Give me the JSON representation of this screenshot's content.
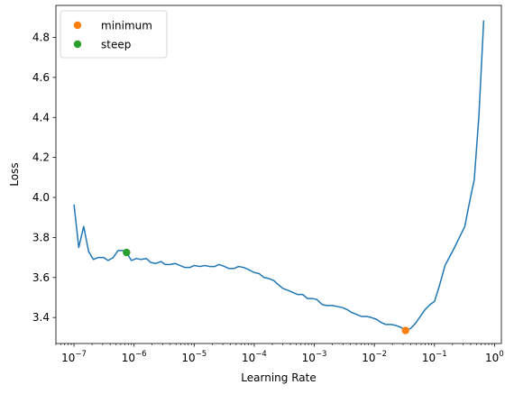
{
  "chart_data": {
    "type": "line",
    "xlabel": "Learning Rate",
    "ylabel": "Loss",
    "xscale": "log",
    "xlim": [
      5e-08,
      1.3
    ],
    "ylim": [
      3.27,
      4.96
    ],
    "grid": false,
    "legend_placement": "top-left",
    "x_ticks": [
      {
        "value": 1e-07,
        "label": "10",
        "exp": "−7"
      },
      {
        "value": 1e-06,
        "label": "10",
        "exp": "−6"
      },
      {
        "value": 1e-05,
        "label": "10",
        "exp": "−5"
      },
      {
        "value": 0.0001,
        "label": "10",
        "exp": "−4"
      },
      {
        "value": 0.001,
        "label": "10",
        "exp": "−3"
      },
      {
        "value": 0.01,
        "label": "10",
        "exp": "−2"
      },
      {
        "value": 0.1,
        "label": "10",
        "exp": "−1"
      },
      {
        "value": 1,
        "label": "10",
        "exp": "0"
      }
    ],
    "y_ticks": [
      {
        "value": 3.4,
        "label": "3.4"
      },
      {
        "value": 3.6,
        "label": "3.6"
      },
      {
        "value": 3.8,
        "label": "3.8"
      },
      {
        "value": 4.0,
        "label": "4.0"
      },
      {
        "value": 4.2,
        "label": "4.2"
      },
      {
        "value": 4.4,
        "label": "4.4"
      },
      {
        "value": 4.6,
        "label": "4.6"
      },
      {
        "value": 4.8,
        "label": "4.8"
      }
    ],
    "series": [
      {
        "color": "#1f77b4",
        "points": [
          [
            1e-07,
            3.965
          ],
          [
            1.2e-07,
            3.75
          ],
          [
            1.45e-07,
            3.855
          ],
          [
            1.75e-07,
            3.73
          ],
          [
            2.1e-07,
            3.69
          ],
          [
            2.55e-07,
            3.7
          ],
          [
            3.1e-07,
            3.7
          ],
          [
            3.7e-07,
            3.685
          ],
          [
            4.5e-07,
            3.7
          ],
          [
            5.4e-07,
            3.735
          ],
          [
            6.5e-07,
            3.735
          ],
          [
            7.5e-07,
            3.725
          ],
          [
            9e-07,
            3.685
          ],
          [
            1.1e-06,
            3.695
          ],
          [
            1.3e-06,
            3.69
          ],
          [
            1.6e-06,
            3.695
          ],
          [
            1.9e-06,
            3.675
          ],
          [
            2.3e-06,
            3.67
          ],
          [
            2.8e-06,
            3.68
          ],
          [
            3.3e-06,
            3.665
          ],
          [
            4e-06,
            3.665
          ],
          [
            4.8e-06,
            3.67
          ],
          [
            5.8e-06,
            3.66
          ],
          [
            7e-06,
            3.65
          ],
          [
            8.5e-06,
            3.65
          ],
          [
            1e-05,
            3.66
          ],
          [
            1.25e-05,
            3.655
          ],
          [
            1.5e-05,
            3.66
          ],
          [
            1.8e-05,
            3.655
          ],
          [
            2.2e-05,
            3.655
          ],
          [
            2.6e-05,
            3.665
          ],
          [
            3.2e-05,
            3.655
          ],
          [
            3.8e-05,
            3.645
          ],
          [
            4.6e-05,
            3.645
          ],
          [
            5.5e-05,
            3.655
          ],
          [
            6.7e-05,
            3.65
          ],
          [
            8e-05,
            3.64
          ],
          [
            0.0001,
            3.625
          ],
          [
            0.00012,
            3.62
          ],
          [
            0.000145,
            3.6
          ],
          [
            0.000175,
            3.595
          ],
          [
            0.00021,
            3.585
          ],
          [
            0.00025,
            3.565
          ],
          [
            0.0003,
            3.545
          ],
          [
            0.00037,
            3.535
          ],
          [
            0.00044,
            3.525
          ],
          [
            0.00053,
            3.515
          ],
          [
            0.00064,
            3.515
          ],
          [
            0.00077,
            3.495
          ],
          [
            0.00093,
            3.495
          ],
          [
            0.0011,
            3.49
          ],
          [
            0.00135,
            3.465
          ],
          [
            0.0016,
            3.46
          ],
          [
            0.002,
            3.46
          ],
          [
            0.0024,
            3.455
          ],
          [
            0.0029,
            3.45
          ],
          [
            0.0035,
            3.44
          ],
          [
            0.0042,
            3.425
          ],
          [
            0.0051,
            3.415
          ],
          [
            0.0061,
            3.405
          ],
          [
            0.0074,
            3.405
          ],
          [
            0.0089,
            3.4
          ],
          [
            0.011,
            3.39
          ],
          [
            0.013,
            3.375
          ],
          [
            0.0155,
            3.365
          ],
          [
            0.019,
            3.365
          ],
          [
            0.023,
            3.36
          ],
          [
            0.028,
            3.35
          ],
          [
            0.033,
            3.335
          ],
          [
            0.04,
            3.345
          ],
          [
            0.048,
            3.37
          ],
          [
            0.058,
            3.405
          ],
          [
            0.07,
            3.44
          ],
          [
            0.085,
            3.465
          ],
          [
            0.1,
            3.48
          ],
          [
            0.12,
            3.555
          ],
          [
            0.15,
            3.66
          ],
          [
            0.18,
            3.705
          ],
          [
            0.22,
            3.755
          ],
          [
            0.26,
            3.8
          ],
          [
            0.32,
            3.855
          ],
          [
            0.38,
            3.97
          ],
          [
            0.46,
            4.09
          ],
          [
            0.55,
            4.41
          ],
          [
            0.66,
            4.885
          ]
        ]
      }
    ],
    "markers": [
      {
        "name": "minimum",
        "color": "#ff7f0e",
        "x": 0.033,
        "y": 3.335
      },
      {
        "name": "steep",
        "color": "#2ca02c",
        "x": 7.5e-07,
        "y": 3.725
      }
    ]
  }
}
